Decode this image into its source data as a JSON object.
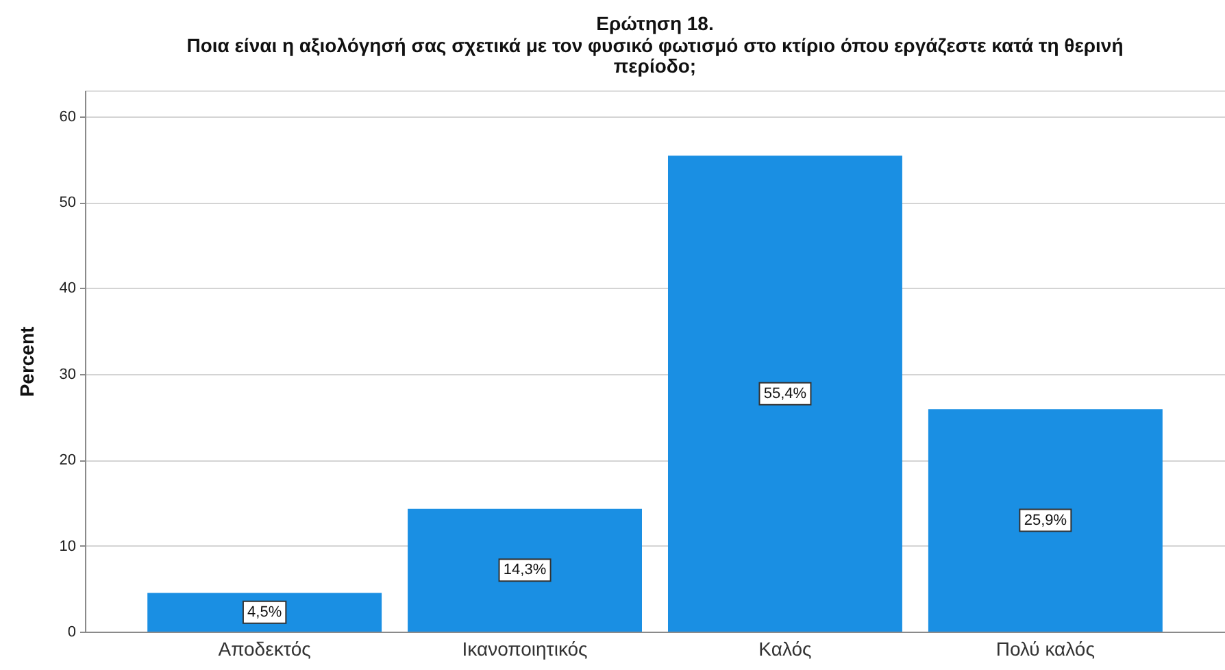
{
  "chart_data": {
    "type": "bar",
    "title": "Ερώτηση 18.",
    "subtitle": "Ποια είναι η αξιολόγησή σας σχετικά με τον φυσικό φωτισμό στο κτίριο όπου εργάζεστε κατά τη θερινή περίοδο;",
    "ylabel": "Percent",
    "categories": [
      "Αποδεκτός",
      "Ικανοποιητικός",
      "Καλός",
      "Πολύ καλός"
    ],
    "values": [
      4.5,
      14.3,
      55.4,
      25.9
    ],
    "value_labels": [
      "4,5%",
      "14,3%",
      "55,4%",
      "25,9%"
    ],
    "color": "#1a8fe3",
    "ylim": [
      0,
      63
    ],
    "yticks": [
      0,
      10,
      20,
      30,
      40,
      50,
      60
    ],
    "grid": "y"
  }
}
